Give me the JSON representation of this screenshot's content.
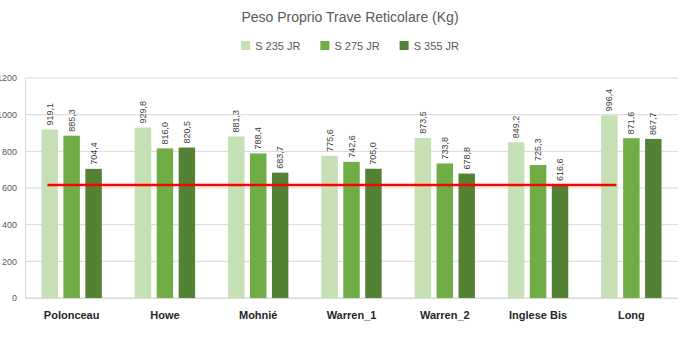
{
  "chart_data": {
    "type": "bar",
    "title": "Peso Proprio Trave Reticolare (Kg)",
    "categories": [
      "Polonceau",
      "Howe",
      "Mohnié",
      "Warren_1",
      "Warren_2",
      "Inglese Bis",
      "Long"
    ],
    "series": [
      {
        "name": "S 235 JR",
        "color": "#c5e0b4",
        "values": [
          919.1,
          929.8,
          881.3,
          775.6,
          873.5,
          849.2,
          996.4
        ],
        "value_labels": [
          "919,1",
          "929,8",
          "881,3",
          "775,6",
          "873,5",
          "849,2",
          "996,4"
        ]
      },
      {
        "name": "S 275 JR",
        "color": "#70ad47",
        "values": [
          885.3,
          816.0,
          788.4,
          742.6,
          733.8,
          725.3,
          871.6
        ],
        "value_labels": [
          "885,3",
          "816,0",
          "788,4",
          "742,6",
          "733,8",
          "725,3",
          "871,6"
        ]
      },
      {
        "name": "S 355 JR",
        "color": "#548235",
        "values": [
          704.4,
          820.5,
          683.7,
          705.0,
          678.8,
          616.6,
          867.7
        ],
        "value_labels": [
          "704,4",
          "820,5",
          "683,7",
          "705,0",
          "678,8",
          "616,6",
          "867,7"
        ]
      }
    ],
    "reference_line": {
      "value": 616.6,
      "color": "#ff0000"
    },
    "ylim": [
      0,
      1200
    ],
    "yticks": [
      0,
      200,
      400,
      600,
      800,
      1000,
      1200
    ],
    "grid": true,
    "legend": "top",
    "data_labels": true
  }
}
